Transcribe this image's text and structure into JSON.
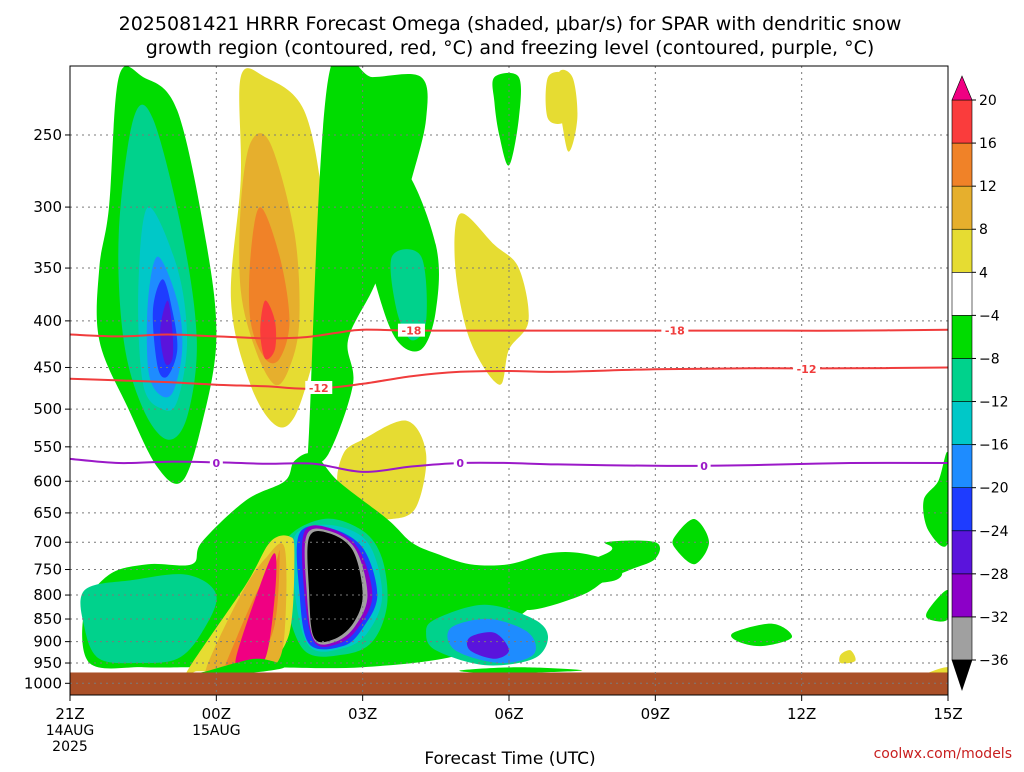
{
  "chart_data": {
    "type": "heatmap",
    "title": "2025081421 HRRR Forecast Omega (shaded, μbar/s) for SPAR with dendritic snow growth region (contoured, red, °C) and freezing level (contoured, purple, °C)",
    "title_lines": [
      "2025081421 HRRR Forecast Omega (shaded, μbar/s) for SPAR with dendritic snow",
      "growth region (contoured, red, °C) and freezing level (contoured, purple, °C)"
    ],
    "xlabel": "Forecast Time (UTC)",
    "ylabel": "",
    "credit": "coolwx.com/models",
    "x_unit": "hours",
    "xlim": [
      0,
      18
    ],
    "ylim": [
      210,
      1030
    ],
    "y_scale": "log-pressure (inverted)",
    "grid": true,
    "x_ticks": [
      {
        "x": 0,
        "lines": [
          "21Z",
          "14AUG",
          "2025"
        ]
      },
      {
        "x": 3,
        "lines": [
          "00Z",
          "15AUG"
        ]
      },
      {
        "x": 6,
        "lines": [
          "03Z"
        ]
      },
      {
        "x": 9,
        "lines": [
          "06Z"
        ]
      },
      {
        "x": 12,
        "lines": [
          "09Z"
        ]
      },
      {
        "x": 15,
        "lines": [
          "12Z"
        ]
      },
      {
        "x": 18,
        "lines": [
          "15Z"
        ]
      }
    ],
    "y_ticks": [
      250,
      300,
      350,
      400,
      450,
      500,
      550,
      600,
      650,
      700,
      750,
      800,
      850,
      900,
      950,
      1000
    ],
    "colorbar": {
      "levels": [
        -36,
        -32,
        -28,
        -24,
        -20,
        -16,
        -12,
        -8,
        -4,
        4,
        8,
        12,
        16,
        20
      ],
      "labels": [
        "20",
        "16",
        "12",
        "8",
        "4",
        "−4",
        "−8",
        "−12",
        "−16",
        "−20",
        "−24",
        "−28",
        "−32",
        "−36"
      ],
      "colors": [
        "#000000",
        "#a0a0a0",
        "#8c00c8",
        "#5a14dc",
        "#1e3cff",
        "#1e8cff",
        "#00c8c8",
        "#00d28c",
        "#00dc00",
        "#ffffff",
        "#e6dc32",
        "#e6af2d",
        "#f08228",
        "#fa3c3c",
        "#f00082"
      ],
      "extend": "both"
    },
    "series": [
      {
        "name": "-18",
        "color": "#f03c3c",
        "x": [
          0,
          1,
          2,
          3,
          4,
          4.8,
          5.5,
          6,
          7,
          8,
          9,
          10,
          12,
          14,
          16,
          18
        ],
        "y": [
          414,
          416,
          414,
          416,
          418,
          417,
          412,
          409,
          410,
          410,
          410,
          410,
          410,
          410,
          410,
          409
        ]
      },
      {
        "name": "-12",
        "color": "#f03c3c",
        "x": [
          0,
          1,
          2,
          3,
          4,
          5,
          6,
          7,
          8,
          9,
          10,
          12,
          14,
          16,
          18
        ],
        "y": [
          463,
          465,
          467,
          470,
          472,
          475,
          469,
          460,
          455,
          454,
          455,
          452,
          451,
          451,
          450
        ]
      },
      {
        "name": "0",
        "color": "#9b19c8",
        "x": [
          0,
          1,
          2,
          3,
          4,
          5,
          6,
          7,
          8,
          9,
          10,
          12,
          13,
          14,
          16,
          18
        ],
        "y": [
          567,
          573,
          571,
          572,
          574,
          574,
          586,
          578,
          573,
          573,
          575,
          577,
          577,
          576,
          573,
          573
        ]
      }
    ],
    "contour_labels": [
      {
        "text": "-18",
        "x": 7.0,
        "y": 410,
        "color": "#f03c3c"
      },
      {
        "text": "-18",
        "x": 12.4,
        "y": 410,
        "color": "#f03c3c"
      },
      {
        "text": "-12",
        "x": 5.1,
        "y": 474,
        "color": "#f03c3c"
      },
      {
        "text": "-12",
        "x": 15.1,
        "y": 452,
        "color": "#f03c3c"
      },
      {
        "text": "0",
        "x": 3.0,
        "y": 573,
        "color": "#9b19c8"
      },
      {
        "text": "0",
        "x": 8.0,
        "y": 573,
        "color": "#9b19c8"
      },
      {
        "text": "0",
        "x": 13.0,
        "y": 577,
        "color": "#9b19c8"
      }
    ],
    "omega_regions": [
      {
        "value": -6,
        "x": [
          1,
          1.5,
          2.2,
          2.8,
          3.0,
          2.7,
          2.3,
          1.8,
          1.2,
          0.6,
          0.6,
          0.8
        ],
        "y": [
          216,
          216,
          235,
          330,
          420,
          520,
          600,
          580,
          500,
          420,
          350,
          300
        ]
      },
      {
        "value": -10,
        "x": [
          1.3,
          1.7,
          2.3,
          2.6,
          2.4,
          2.0,
          1.5,
          1.1,
          1.0
        ],
        "y": [
          240,
          240,
          320,
          420,
          510,
          540,
          500,
          420,
          320
        ]
      },
      {
        "value": -14,
        "x": [
          1.6,
          2.2,
          2.4,
          2.2,
          1.9,
          1.5,
          1.4
        ],
        "y": [
          300,
          350,
          420,
          490,
          500,
          470,
          370
        ]
      },
      {
        "value": -18,
        "x": [
          1.8,
          2.2,
          2.3,
          2.1,
          1.8,
          1.6,
          1.6
        ],
        "y": [
          340,
          380,
          430,
          480,
          480,
          450,
          380
        ]
      },
      {
        "value": -22,
        "x": [
          1.9,
          2.1,
          2.2,
          2.0,
          1.8,
          1.7
        ],
        "y": [
          360,
          390,
          430,
          460,
          450,
          390
        ]
      },
      {
        "value": -26,
        "x": [
          2.0,
          2.1,
          2.1,
          1.95,
          1.85
        ],
        "y": [
          380,
          410,
          440,
          445,
          410
        ]
      },
      {
        "value": 6,
        "x": [
          3.5,
          4.0,
          4.8,
          5.2,
          5.3,
          5.0,
          4.6,
          4.2,
          3.7,
          3.3,
          3.5
        ],
        "y": [
          216,
          216,
          235,
          300,
          380,
          440,
          510,
          520,
          470,
          380,
          280
        ]
      },
      {
        "value": 10,
        "x": [
          3.7,
          4.1,
          4.6,
          4.7,
          4.5,
          4.2,
          3.8,
          3.5,
          3.5
        ],
        "y": [
          255,
          255,
          320,
          400,
          450,
          470,
          430,
          370,
          300
        ]
      },
      {
        "value": 14,
        "x": [
          3.9,
          4.3,
          4.5,
          4.3,
          4.0,
          3.7,
          3.7
        ],
        "y": [
          300,
          340,
          400,
          440,
          440,
          400,
          340
        ]
      },
      {
        "value": 18,
        "x": [
          4.0,
          4.2,
          4.2,
          4.0,
          3.9
        ],
        "y": [
          380,
          400,
          430,
          440,
          410
        ]
      },
      {
        "value": -6,
        "x": [
          5.3,
          6.2,
          7.2,
          7.3,
          7.0,
          6.6,
          6.2,
          5.7,
          5.8,
          5.3,
          4.9,
          4.9
        ],
        "y": [
          216,
          216,
          216,
          240,
          280,
          330,
          370,
          420,
          470,
          560,
          570,
          530
        ]
      },
      {
        "value": -6,
        "x": [
          6.0,
          6.8,
          7.5,
          7.5,
          7.2,
          6.7,
          6.3,
          5.9
        ],
        "y": [
          280,
          270,
          330,
          390,
          430,
          420,
          370,
          300
        ]
      },
      {
        "value": -10,
        "x": [
          6.6,
          7.2,
          7.3,
          7.0,
          6.7
        ],
        "y": [
          340,
          340,
          400,
          420,
          390
        ]
      },
      {
        "value": 6,
        "x": [
          8.0,
          8.7,
          9.2,
          9.4,
          9.0,
          8.8,
          8.2,
          7.9
        ],
        "y": [
          305,
          330,
          350,
          400,
          430,
          470,
          420,
          350
        ]
      },
      {
        "value": 6,
        "x": [
          10.0,
          10.3,
          10.4,
          10.2
        ],
        "y": [
          216,
          216,
          240,
          260
        ]
      },
      {
        "value": 6,
        "x": [
          9.8,
          10.2,
          10.2,
          9.8
        ],
        "y": [
          216,
          216,
          240,
          240
        ]
      },
      {
        "value": -6,
        "x": [
          8.7,
          9.2,
          9.2,
          9.0,
          8.8,
          8.7
        ],
        "y": [
          216,
          216,
          240,
          270,
          250,
          230
        ]
      },
      {
        "value": 6,
        "x": [
          6.0,
          6.9,
          7.3,
          7.1,
          6.6,
          6.0,
          5.5,
          5.6
        ],
        "y": [
          540,
          515,
          560,
          640,
          660,
          650,
          610,
          560
        ]
      },
      {
        "value": -6,
        "x": [
          2.7,
          3.6,
          4.4,
          4.6,
          5.0,
          5.5,
          6.5,
          7.0,
          7.5,
          8.2,
          9.0,
          9.8,
          10.5,
          11.2,
          11.2,
          10.0,
          9.0,
          8.0,
          6.0,
          4.0,
          3.0,
          2.4,
          1.5,
          0.4,
          0.3,
          0.8,
          1.6,
          2.5
        ],
        "y": [
          700,
          630,
          600,
          570,
          560,
          600,
          660,
          700,
          720,
          740,
          740,
          720,
          720,
          740,
          770,
          790,
          860,
          930,
          960,
          960,
          960,
          960,
          960,
          950,
          830,
          760,
          740,
          740
        ]
      },
      {
        "value": -10,
        "x": [
          4.4,
          5.2,
          6.0,
          6.4,
          6.5,
          6.2,
          5.6,
          4.8,
          4.4
        ],
        "y": [
          700,
          660,
          680,
          730,
          820,
          900,
          930,
          920,
          800
        ]
      },
      {
        "value": -10,
        "x": [
          7.5,
          8.5,
          9.5,
          9.8,
          9.5,
          8.5,
          7.5,
          7.3
        ],
        "y": [
          850,
          820,
          850,
          890,
          940,
          955,
          920,
          880
        ]
      },
      {
        "value": -10,
        "x": [
          0.3,
          1.3,
          2.4,
          3.0,
          2.7,
          2.2,
          1.4,
          0.6,
          0.3
        ],
        "y": [
          790,
          770,
          760,
          800,
          880,
          940,
          950,
          940,
          870
        ]
      },
      {
        "value": -14,
        "x": [
          4.6,
          5.3,
          6.1,
          6.4,
          6.1,
          5.6,
          4.9,
          4.6
        ],
        "y": [
          690,
          670,
          700,
          800,
          880,
          915,
          910,
          790
        ]
      },
      {
        "value": -18,
        "x": [
          7.8,
          8.6,
          9.4,
          9.5,
          8.8,
          7.9
        ],
        "y": [
          870,
          850,
          880,
          930,
          950,
          920
        ]
      },
      {
        "value": -22,
        "x": [
          4.7,
          5.3,
          6.0,
          6.3,
          6.0,
          5.6,
          4.9,
          4.7
        ],
        "y": [
          685,
          675,
          710,
          800,
          870,
          910,
          905,
          790
        ]
      },
      {
        "value": -26,
        "x": [
          8.2,
          8.7,
          9.0,
          8.7,
          8.2
        ],
        "y": [
          890,
          880,
          920,
          940,
          920
        ]
      },
      {
        "value": -30,
        "x": [
          4.8,
          5.3,
          5.9,
          6.2,
          5.9,
          5.5,
          5.0,
          4.8
        ],
        "y": [
          683,
          675,
          710,
          800,
          870,
          905,
          900,
          790
        ]
      },
      {
        "value": -34,
        "x": [
          4.85,
          5.3,
          5.85,
          6.1,
          5.85,
          5.45,
          5.0,
          4.85
        ],
        "y": [
          688,
          680,
          712,
          800,
          865,
          900,
          895,
          790
        ]
      },
      {
        "value": -38,
        "x": [
          4.9,
          5.3,
          5.8,
          6.0,
          5.8,
          5.4,
          5.0,
          4.9
        ],
        "y": [
          692,
          684,
          715,
          800,
          860,
          895,
          890,
          790
        ]
      },
      {
        "value": 6,
        "x": [
          2.4,
          3.6,
          4.1,
          4.5,
          4.6,
          4.5,
          4.0,
          3.5,
          3.1,
          2.6
        ],
        "y": [
          970,
          780,
          700,
          690,
          720,
          880,
          960,
          965,
          970,
          970
        ]
      },
      {
        "value": 10,
        "x": [
          2.8,
          3.5,
          4.0,
          4.4,
          4.4,
          4.2,
          3.7,
          3.0
        ],
        "y": [
          960,
          800,
          730,
          710,
          880,
          955,
          960,
          965
        ]
      },
      {
        "value": 14,
        "x": [
          3.2,
          3.8,
          4.2,
          4.3,
          4.2,
          3.8,
          3.2
        ],
        "y": [
          950,
          800,
          740,
          720,
          860,
          950,
          955
        ]
      },
      {
        "value": 20,
        "x": [
          3.4,
          3.9,
          4.2,
          4.2,
          4.0,
          3.6
        ],
        "y": [
          940,
          780,
          720,
          800,
          940,
          950
        ]
      },
      {
        "value": -6,
        "x": [
          9.0,
          11.0,
          11.0,
          12.0,
          12.0,
          11.5,
          11.0,
          10.5,
          9.5,
          8.9
        ],
        "y": [
          790,
          720,
          700,
          700,
          730,
          750,
          770,
          800,
          830,
          820
        ]
      },
      {
        "value": -6,
        "x": [
          12.4,
          12.8,
          13.1,
          12.8,
          12.4
        ],
        "y": [
          690,
          660,
          700,
          740,
          710
        ]
      },
      {
        "value": -6,
        "x": [
          13.6,
          14.4,
          14.8,
          14.2,
          13.7
        ],
        "y": [
          880,
          860,
          890,
          910,
          900
        ]
      },
      {
        "value": -6,
        "x": [
          17.8,
          18.0,
          18.0,
          17.6,
          17.5
        ],
        "y": [
          600,
          560,
          700,
          680,
          630
        ]
      },
      {
        "value": -6,
        "x": [
          17.6,
          18.0,
          18.0,
          17.6
        ],
        "y": [
          830,
          790,
          850,
          850
        ]
      },
      {
        "value": 6,
        "x": [
          17.3,
          18.0,
          18.0,
          17.5
        ],
        "y": [
          990,
          960,
          1000,
          1000
        ]
      },
      {
        "value": 6,
        "x": [
          15.8,
          16.0,
          16.1,
          15.8
        ],
        "y": [
          930,
          920,
          945,
          950
        ]
      },
      {
        "value": -6,
        "x": [
          2.8,
          3.4,
          3.9,
          4.4,
          3.6,
          3.0,
          2.6
        ],
        "y": [
          970,
          950,
          940,
          960,
          975,
          975,
          975
        ]
      },
      {
        "value": -6,
        "x": [
          8.0,
          9.2,
          10.5,
          9.0,
          8.5
        ],
        "y": [
          968,
          960,
          968,
          975,
          975
        ]
      }
    ],
    "terrain": {
      "color": "#aa5028",
      "from_pressure": 973,
      "to_pressure": 1030
    }
  }
}
